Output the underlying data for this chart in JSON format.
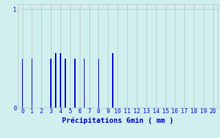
{
  "xlabel": "Précipitations 6min ( mm )",
  "xlim": [
    -0.5,
    20.5
  ],
  "ylim": [
    0,
    1.05
  ],
  "yticks": [
    0,
    1
  ],
  "xticks": [
    0,
    1,
    2,
    3,
    4,
    5,
    6,
    7,
    8,
    9,
    10,
    11,
    12,
    13,
    14,
    15,
    16,
    17,
    18,
    19,
    20
  ],
  "bar_positions": [
    0,
    1,
    3,
    3.5,
    4,
    4.5,
    5.5,
    6.5,
    8,
    9.5
  ],
  "bar_heights": [
    0.5,
    0.5,
    0.5,
    0.55,
    0.55,
    0.5,
    0.5,
    0.5,
    0.5,
    0.55
  ],
  "bar_color": "#0000cc",
  "bar_width": 0.12,
  "background_color": "#cff0ee",
  "grid_color": "#bbbbbb",
  "tick_color": "#0000cc",
  "label_color": "#0000cc",
  "tick_fontsize": 6,
  "label_fontsize": 7.5
}
